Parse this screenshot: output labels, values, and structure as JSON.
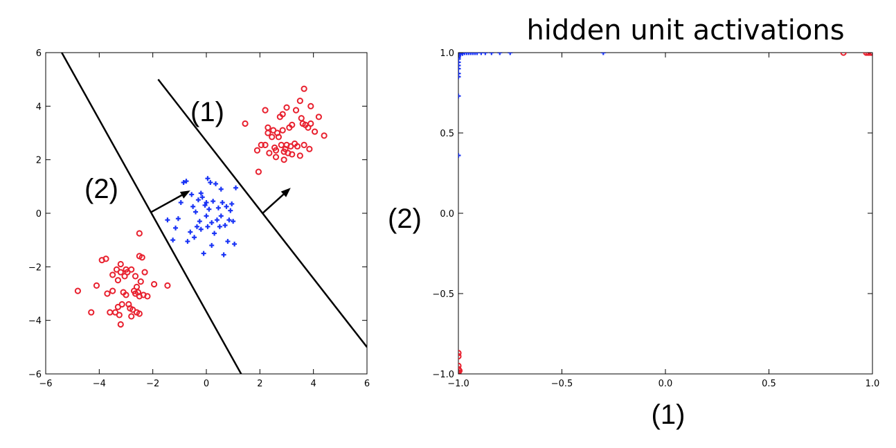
{
  "chart_data": [
    {
      "type": "scatter",
      "title": "",
      "xlim": [
        -6,
        6
      ],
      "ylim": [
        -6,
        6
      ],
      "xticks": [
        "−6",
        "−4",
        "−2",
        "0",
        "2",
        "4",
        "6"
      ],
      "yticks": [
        "−6",
        "−4",
        "−2",
        "0",
        "2",
        "4",
        "6"
      ],
      "grid": false,
      "series": [
        {
          "color": "#e8202e",
          "marker": "circle-open",
          "points": [
            [
              -4.8,
              -2.9
            ],
            [
              -4.3,
              -3.7
            ],
            [
              -4.1,
              -2.7
            ],
            [
              -3.9,
              -1.75
            ],
            [
              -3.75,
              -1.7
            ],
            [
              -3.7,
              -3.0
            ],
            [
              -3.6,
              -3.7
            ],
            [
              -3.5,
              -2.9
            ],
            [
              -3.5,
              -2.3
            ],
            [
              -3.4,
              -3.7
            ],
            [
              -3.35,
              -2.1
            ],
            [
              -3.3,
              -3.5
            ],
            [
              -3.3,
              -2.5
            ],
            [
              -3.25,
              -3.8
            ],
            [
              -3.2,
              -2.2
            ],
            [
              -3.2,
              -1.9
            ],
            [
              -3.2,
              -4.15
            ],
            [
              -3.15,
              -3.4
            ],
            [
              -3.1,
              -2.95
            ],
            [
              -3.05,
              -2.35
            ],
            [
              -3.0,
              -2.1
            ],
            [
              -3.0,
              -3.05
            ],
            [
              -2.95,
              -2.2
            ],
            [
              -2.9,
              -3.4
            ],
            [
              -2.85,
              -3.55
            ],
            [
              -2.8,
              -3.85
            ],
            [
              -2.8,
              -2.1
            ],
            [
              -2.75,
              -3.6
            ],
            [
              -2.7,
              -2.9
            ],
            [
              -2.65,
              -2.35
            ],
            [
              -2.65,
              -3.0
            ],
            [
              -2.6,
              -2.75
            ],
            [
              -2.6,
              -3.7
            ],
            [
              -2.55,
              -2.95
            ],
            [
              -2.5,
              -3.75
            ],
            [
              -2.5,
              -3.1
            ],
            [
              -2.5,
              -1.6
            ],
            [
              -2.45,
              -2.55
            ],
            [
              -2.4,
              -1.65
            ],
            [
              -2.35,
              -3.05
            ],
            [
              -2.3,
              -2.2
            ],
            [
              -2.2,
              -3.1
            ],
            [
              -1.95,
              -2.65
            ],
            [
              -1.45,
              -2.7
            ],
            [
              -2.5,
              -0.75
            ],
            [
              1.95,
              1.55
            ],
            [
              1.9,
              2.35
            ],
            [
              2.05,
              2.55
            ],
            [
              2.2,
              2.55
            ],
            [
              2.2,
              3.85
            ],
            [
              2.3,
              3.2
            ],
            [
              2.35,
              2.25
            ],
            [
              2.45,
              2.85
            ],
            [
              2.5,
              3.1
            ],
            [
              2.55,
              2.45
            ],
            [
              2.6,
              2.1
            ],
            [
              2.65,
              3.0
            ],
            [
              2.7,
              2.85
            ],
            [
              2.75,
              3.6
            ],
            [
              2.8,
              2.55
            ],
            [
              2.85,
              3.7
            ],
            [
              2.85,
              3.1
            ],
            [
              2.9,
              2.3
            ],
            [
              2.9,
              2.0
            ],
            [
              2.95,
              2.4
            ],
            [
              3.0,
              3.95
            ],
            [
              3.0,
              2.55
            ],
            [
              3.05,
              2.25
            ],
            [
              3.1,
              3.2
            ],
            [
              3.15,
              2.5
            ],
            [
              3.2,
              3.3
            ],
            [
              3.2,
              2.2
            ],
            [
              3.3,
              2.6
            ],
            [
              3.35,
              3.85
            ],
            [
              3.4,
              2.5
            ],
            [
              3.5,
              2.15
            ],
            [
              3.5,
              4.2
            ],
            [
              3.55,
              3.55
            ],
            [
              3.6,
              3.35
            ],
            [
              3.65,
              2.55
            ],
            [
              3.7,
              3.3
            ],
            [
              3.8,
              3.2
            ],
            [
              3.85,
              2.4
            ],
            [
              3.9,
              3.35
            ],
            [
              3.9,
              4.0
            ],
            [
              3.65,
              4.65
            ],
            [
              4.05,
              3.05
            ],
            [
              4.2,
              3.6
            ],
            [
              4.4,
              2.9
            ],
            [
              1.45,
              3.35
            ],
            [
              2.3,
              3.0
            ],
            [
              2.6,
              2.35
            ]
          ]
        },
        {
          "color": "#1a34f5",
          "marker": "plus",
          "points": [
            [
              -1.45,
              -0.25
            ],
            [
              -1.25,
              -1.0
            ],
            [
              -1.15,
              -0.55
            ],
            [
              -1.05,
              -0.2
            ],
            [
              -0.95,
              0.4
            ],
            [
              -0.85,
              1.15
            ],
            [
              -0.75,
              1.2
            ],
            [
              -0.7,
              -1.05
            ],
            [
              -0.6,
              -0.7
            ],
            [
              -0.5,
              0.25
            ],
            [
              -0.45,
              -0.9
            ],
            [
              -0.4,
              0.05
            ],
            [
              -0.35,
              -0.5
            ],
            [
              -0.3,
              0.5
            ],
            [
              -0.25,
              -0.3
            ],
            [
              -0.2,
              -0.6
            ],
            [
              -0.15,
              0.6
            ],
            [
              -0.1,
              -1.5
            ],
            [
              -0.05,
              0.3
            ],
            [
              0.0,
              -0.1
            ],
            [
              0.0,
              0.4
            ],
            [
              0.05,
              1.3
            ],
            [
              0.05,
              -0.5
            ],
            [
              0.1,
              0.15
            ],
            [
              0.15,
              1.15
            ],
            [
              0.2,
              -0.35
            ],
            [
              0.2,
              -1.2
            ],
            [
              0.25,
              0.45
            ],
            [
              0.3,
              -0.75
            ],
            [
              0.35,
              1.1
            ],
            [
              0.4,
              -0.25
            ],
            [
              0.45,
              0.2
            ],
            [
              0.5,
              -0.5
            ],
            [
              0.55,
              -0.1
            ],
            [
              0.6,
              0.4
            ],
            [
              0.65,
              -1.55
            ],
            [
              0.7,
              -0.45
            ],
            [
              0.75,
              0.25
            ],
            [
              0.8,
              -1.05
            ],
            [
              0.85,
              -0.25
            ],
            [
              0.9,
              0.1
            ],
            [
              1.0,
              -0.3
            ],
            [
              1.05,
              -1.15
            ],
            [
              1.1,
              0.95
            ],
            [
              0.95,
              0.35
            ],
            [
              -0.55,
              0.7
            ],
            [
              -0.2,
              0.75
            ],
            [
              0.55,
              0.9
            ]
          ]
        }
      ],
      "lines": [
        {
          "label": "(1)",
          "from": [
            -1.8,
            5.0
          ],
          "to": [
            6.0,
            -5.0
          ]
        },
        {
          "label": "(2)",
          "from": [
            -5.4,
            6.0
          ],
          "to": [
            1.3,
            -6.0
          ]
        }
      ],
      "arrows": [
        {
          "from": [
            -2.05,
            0.05
          ],
          "to": [
            -0.6,
            0.85
          ]
        },
        {
          "from": [
            2.1,
            0.0
          ],
          "to": [
            3.15,
            0.95
          ]
        }
      ],
      "annotations": [
        "(1)",
        "(2)"
      ]
    },
    {
      "type": "scatter",
      "title": "hidden unit activations",
      "xlabel": "(1)",
      "ylabel": "(2)",
      "xlim": [
        -1.0,
        1.0
      ],
      "ylim": [
        -1.0,
        1.0
      ],
      "xticks": [
        "−1.0",
        "−0.5",
        "0.0",
        "0.5",
        "1.0"
      ],
      "yticks": [
        "−1.0",
        "−0.5",
        "0.0",
        "0.5",
        "1.0"
      ],
      "grid": false,
      "series": [
        {
          "color": "#1a34f5",
          "marker": "plus",
          "points": [
            [
              -1.0,
              1.0
            ],
            [
              -0.99,
              1.0
            ],
            [
              -0.98,
              1.0
            ],
            [
              -0.97,
              1.0
            ],
            [
              -0.96,
              1.0
            ],
            [
              -0.95,
              1.0
            ],
            [
              -0.94,
              1.0
            ],
            [
              -0.93,
              1.0
            ],
            [
              -0.92,
              1.0
            ],
            [
              -0.91,
              1.0
            ],
            [
              -0.89,
              1.0
            ],
            [
              -0.87,
              1.0
            ],
            [
              -0.84,
              1.0
            ],
            [
              -0.8,
              1.0
            ],
            [
              -0.75,
              1.0
            ],
            [
              -0.3,
              1.0
            ],
            [
              -1.0,
              0.99
            ],
            [
              -1.0,
              0.98
            ],
            [
              -1.0,
              0.97
            ],
            [
              -1.0,
              0.96
            ],
            [
              -1.0,
              0.94
            ],
            [
              -1.0,
              0.92
            ],
            [
              -1.0,
              0.9
            ],
            [
              -1.0,
              0.87
            ],
            [
              -1.0,
              0.85
            ],
            [
              -1.0,
              0.73
            ],
            [
              -1.0,
              0.36
            ],
            [
              -0.99,
              0.99
            ],
            [
              -0.98,
              0.995
            ]
          ]
        },
        {
          "color": "#e8202e",
          "marker": "circle-open",
          "points": [
            [
              0.86,
              1.0
            ],
            [
              0.98,
              1.0
            ],
            [
              0.99,
              1.0
            ],
            [
              1.0,
              1.0
            ],
            [
              0.995,
              1.0
            ],
            [
              0.97,
              1.0
            ],
            [
              -1.0,
              -0.87
            ],
            [
              -1.0,
              -0.89
            ],
            [
              -1.0,
              -0.95
            ],
            [
              -1.0,
              -0.97
            ],
            [
              -1.0,
              -0.99
            ],
            [
              -1.0,
              -1.0
            ],
            [
              -0.995,
              -0.98
            ]
          ]
        }
      ]
    }
  ]
}
